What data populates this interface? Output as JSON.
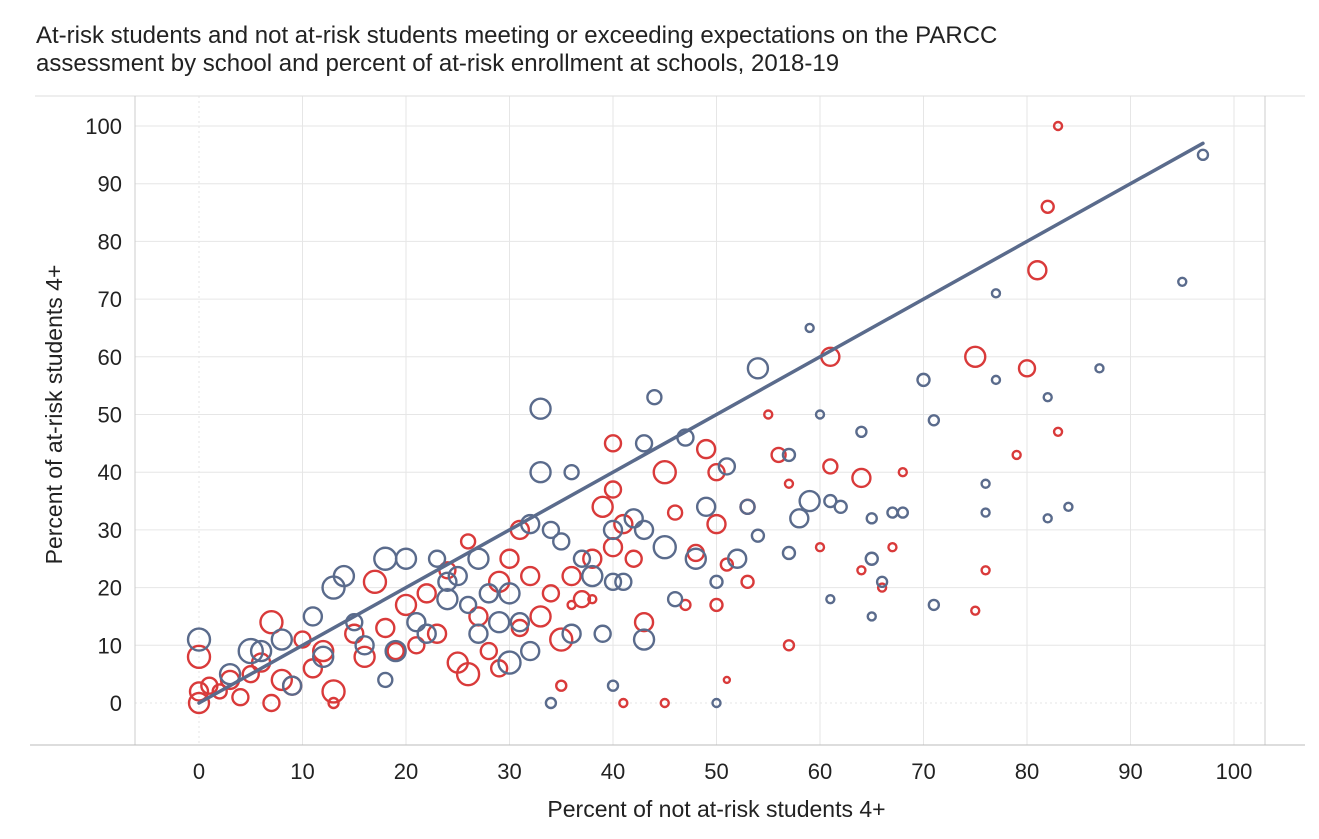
{
  "chart_data": {
    "type": "scatter",
    "title": "At-risk students and not at-risk students meeting or exceeding expectations on the PARCC assessment by school and percent of at-risk enrollment at schools, 2018-19",
    "title_lines": [
      "At-risk students and not at-risk students meeting or exceeding expectations on the PARCC",
      "assessment by school and percent of at-risk enrollment at schools, 2018-19"
    ],
    "xlabel": "Percent of not at-risk students 4+",
    "ylabel": "Percent of at-risk students 4+",
    "xlim": [
      -6,
      102
    ],
    "ylim": [
      -7,
      107
    ],
    "xticks": [
      0,
      10,
      20,
      30,
      40,
      50,
      60,
      70,
      80,
      90,
      100
    ],
    "yticks": [
      0,
      10,
      20,
      30,
      40,
      50,
      60,
      70,
      80,
      90,
      100
    ],
    "grid": true,
    "legend": "none",
    "colors": {
      "red": "#d93a3a",
      "blue": "#5a6b8c",
      "trend": "#5a6b8c",
      "grid": "#e6e6e6"
    },
    "trendline": {
      "x": [
        0,
        97
      ],
      "y": [
        0,
        97
      ]
    },
    "series": [
      {
        "color": "red",
        "points": [
          [
            0,
            0,
            10
          ],
          [
            0,
            2,
            9
          ],
          [
            0,
            8,
            11
          ],
          [
            1,
            3,
            8
          ],
          [
            2,
            2,
            7
          ],
          [
            3,
            4,
            9
          ],
          [
            4,
            1,
            8
          ],
          [
            5,
            5,
            8
          ],
          [
            6,
            7,
            9
          ],
          [
            7,
            0,
            8
          ],
          [
            7,
            14,
            11
          ],
          [
            8,
            4,
            10
          ],
          [
            9,
            3,
            9
          ],
          [
            10,
            11,
            8
          ],
          [
            11,
            6,
            9
          ],
          [
            12,
            9,
            10
          ],
          [
            13,
            2,
            11
          ],
          [
            13,
            0,
            5
          ],
          [
            15,
            12,
            9
          ],
          [
            16,
            8,
            10
          ],
          [
            17,
            21,
            11
          ],
          [
            18,
            13,
            9
          ],
          [
            19,
            9,
            8
          ],
          [
            20,
            17,
            10
          ],
          [
            21,
            10,
            8
          ],
          [
            22,
            19,
            9
          ],
          [
            23,
            12,
            9
          ],
          [
            24,
            23,
            8
          ],
          [
            25,
            7,
            10
          ],
          [
            26,
            28,
            7
          ],
          [
            27,
            15,
            9
          ],
          [
            28,
            9,
            8
          ],
          [
            29,
            21,
            10
          ],
          [
            30,
            25,
            9
          ],
          [
            31,
            13,
            8
          ],
          [
            32,
            22,
            9
          ],
          [
            33,
            15,
            10
          ],
          [
            34,
            19,
            8
          ],
          [
            35,
            11,
            11
          ],
          [
            35,
            3,
            5
          ],
          [
            36,
            22,
            9
          ],
          [
            37,
            18,
            8
          ],
          [
            38,
            25,
            9
          ],
          [
            39,
            34,
            10
          ],
          [
            40,
            27,
            9
          ],
          [
            40,
            45,
            8
          ],
          [
            41,
            31,
            9
          ],
          [
            42,
            25,
            8
          ],
          [
            43,
            14,
            9
          ],
          [
            45,
            40,
            11
          ],
          [
            46,
            33,
            7
          ],
          [
            47,
            17,
            5
          ],
          [
            48,
            26,
            8
          ],
          [
            49,
            44,
            9
          ],
          [
            50,
            40,
            8
          ],
          [
            50,
            31,
            9
          ],
          [
            50,
            17,
            6
          ],
          [
            51,
            24,
            6
          ],
          [
            51,
            4,
            3
          ],
          [
            53,
            34,
            7
          ],
          [
            53,
            21,
            6
          ],
          [
            55,
            50,
            4
          ],
          [
            56,
            43,
            7
          ],
          [
            57,
            38,
            4
          ],
          [
            57,
            10,
            5
          ],
          [
            60,
            27,
            4
          ],
          [
            61,
            41,
            7
          ],
          [
            61,
            60,
            9
          ],
          [
            64,
            23,
            4
          ],
          [
            64,
            39,
            9
          ],
          [
            66,
            20,
            4
          ],
          [
            67,
            27,
            4
          ],
          [
            68,
            40,
            4
          ],
          [
            75,
            60,
            10
          ],
          [
            75,
            16,
            4
          ],
          [
            76,
            23,
            4
          ],
          [
            79,
            43,
            4
          ],
          [
            80,
            58,
            8
          ],
          [
            81,
            75,
            9
          ],
          [
            82,
            86,
            6
          ],
          [
            83,
            100,
            4
          ],
          [
            83,
            47,
            4
          ],
          [
            41,
            0,
            4
          ],
          [
            45,
            0,
            4
          ],
          [
            36,
            17,
            4
          ],
          [
            38,
            18,
            4
          ],
          [
            31,
            30,
            9
          ],
          [
            40,
            37,
            8
          ],
          [
            26,
            5,
            11
          ],
          [
            29,
            6,
            8
          ]
        ]
      },
      {
        "color": "blue",
        "points": [
          [
            0,
            11,
            11
          ],
          [
            3,
            5,
            10
          ],
          [
            5,
            9,
            12
          ],
          [
            6,
            9,
            10
          ],
          [
            8,
            11,
            10
          ],
          [
            9,
            3,
            9
          ],
          [
            11,
            15,
            9
          ],
          [
            12,
            8,
            10
          ],
          [
            13,
            20,
            11
          ],
          [
            14,
            22,
            10
          ],
          [
            15,
            14,
            8
          ],
          [
            16,
            10,
            9
          ],
          [
            18,
            25,
            11
          ],
          [
            18,
            4,
            7
          ],
          [
            19,
            9,
            10
          ],
          [
            20,
            25,
            10
          ],
          [
            21,
            14,
            9
          ],
          [
            22,
            12,
            9
          ],
          [
            23,
            25,
            8
          ],
          [
            24,
            18,
            10
          ],
          [
            25,
            22,
            9
          ],
          [
            26,
            17,
            8
          ],
          [
            27,
            25,
            10
          ],
          [
            28,
            19,
            9
          ],
          [
            29,
            14,
            10
          ],
          [
            30,
            7,
            11
          ],
          [
            30,
            19,
            10
          ],
          [
            31,
            14,
            9
          ],
          [
            32,
            9,
            9
          ],
          [
            32,
            31,
            9
          ],
          [
            33,
            51,
            10
          ],
          [
            33,
            40,
            10
          ],
          [
            34,
            30,
            8
          ],
          [
            34,
            0,
            5
          ],
          [
            35,
            28,
            8
          ],
          [
            36,
            40,
            7
          ],
          [
            36,
            12,
            9
          ],
          [
            37,
            25,
            8
          ],
          [
            38,
            22,
            10
          ],
          [
            39,
            12,
            8
          ],
          [
            40,
            3,
            5
          ],
          [
            40,
            30,
            9
          ],
          [
            41,
            21,
            8
          ],
          [
            42,
            32,
            9
          ],
          [
            43,
            45,
            8
          ],
          [
            43,
            11,
            10
          ],
          [
            44,
            53,
            7
          ],
          [
            45,
            27,
            11
          ],
          [
            46,
            18,
            7
          ],
          [
            47,
            46,
            8
          ],
          [
            48,
            25,
            10
          ],
          [
            49,
            34,
            9
          ],
          [
            50,
            0,
            4
          ],
          [
            50,
            21,
            6
          ],
          [
            51,
            41,
            8
          ],
          [
            52,
            25,
            9
          ],
          [
            53,
            34,
            7
          ],
          [
            54,
            58,
            10
          ],
          [
            54,
            29,
            6
          ],
          [
            57,
            43,
            6
          ],
          [
            57,
            26,
            6
          ],
          [
            58,
            32,
            9
          ],
          [
            59,
            65,
            4
          ],
          [
            59,
            35,
            10
          ],
          [
            60,
            50,
            4
          ],
          [
            61,
            18,
            4
          ],
          [
            61,
            35,
            6
          ],
          [
            62,
            34,
            6
          ],
          [
            64,
            47,
            5
          ],
          [
            65,
            32,
            5
          ],
          [
            65,
            25,
            6
          ],
          [
            65,
            15,
            4
          ],
          [
            66,
            21,
            5
          ],
          [
            67,
            33,
            5
          ],
          [
            68,
            33,
            5
          ],
          [
            70,
            56,
            6
          ],
          [
            71,
            17,
            5
          ],
          [
            71,
            49,
            5
          ],
          [
            76,
            38,
            4
          ],
          [
            76,
            33,
            4
          ],
          [
            77,
            56,
            4
          ],
          [
            77,
            71,
            4
          ],
          [
            82,
            53,
            4
          ],
          [
            82,
            32,
            4
          ],
          [
            84,
            34,
            4
          ],
          [
            87,
            58,
            4
          ],
          [
            95,
            73,
            4
          ],
          [
            97,
            95,
            5
          ],
          [
            24,
            21,
            9
          ],
          [
            27,
            12,
            9
          ],
          [
            40,
            21,
            8
          ],
          [
            43,
            30,
            9
          ]
        ]
      }
    ]
  }
}
